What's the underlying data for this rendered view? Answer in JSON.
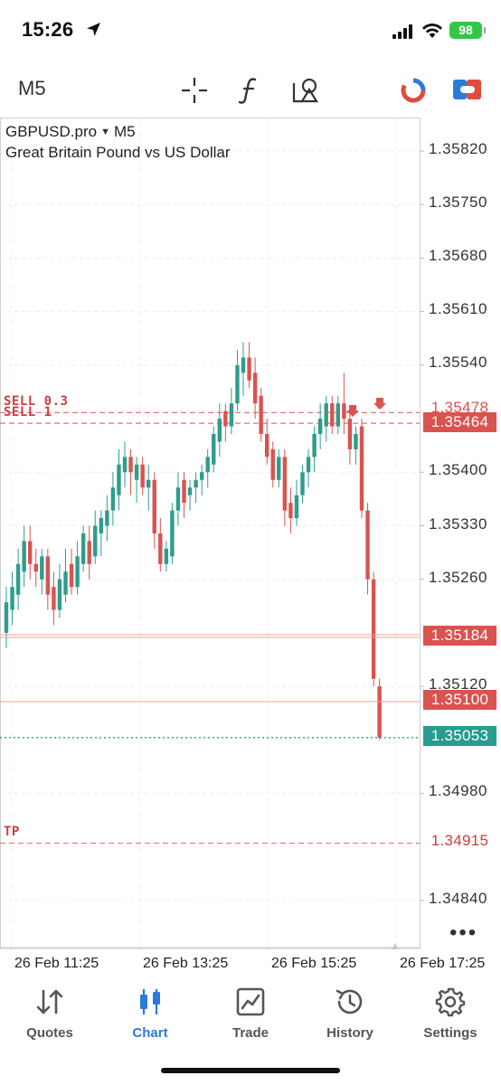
{
  "status_bar": {
    "time": "15:26",
    "battery": "98"
  },
  "toolbar": {
    "timeframe": "M5"
  },
  "chart": {
    "symbol": "GBPUSD.pro",
    "symbol_timeframe": "M5",
    "description": "Great Britain Pound vs US Dollar",
    "price_scale": [
      "1.35820",
      "1.35750",
      "1.35680",
      "1.35610",
      "1.35540",
      "1.35400",
      "1.35330",
      "1.35260",
      "1.35120",
      "1.34980",
      "1.34840"
    ],
    "levels": {
      "sell_1_label": "SELL 0.3",
      "sell_1_price": "1.35478",
      "sell_2_label": "SELL 1",
      "sell_2_price": "1.35464",
      "line_1_price": "1.35184",
      "line_2_price": "1.35100",
      "current_price": "1.35053",
      "tp_label": "TP",
      "tp_price": "1.34915"
    },
    "time_axis": [
      "26 Feb 11:25",
      "26 Feb 13:25",
      "26 Feb 15:25",
      "26 Feb 17:25"
    ],
    "colors": {
      "bull": "#2f9c8c",
      "bear": "#d9534f",
      "current": "#279c8f"
    }
  },
  "chart_data": {
    "type": "candlestick",
    "y_range": [
      1.348,
      1.3585
    ],
    "series": [
      {
        "c": "b",
        "o": 1.3519,
        "h": 1.3525,
        "l": 1.3517,
        "cl": 1.3523
      },
      {
        "c": "b",
        "o": 1.3522,
        "h": 1.3527,
        "l": 1.352,
        "cl": 1.3525
      },
      {
        "c": "b",
        "o": 1.3524,
        "h": 1.353,
        "l": 1.3522,
        "cl": 1.3528
      },
      {
        "c": "b",
        "o": 1.3527,
        "h": 1.3533,
        "l": 1.3525,
        "cl": 1.3531
      },
      {
        "c": "r",
        "o": 1.3531,
        "h": 1.3533,
        "l": 1.3526,
        "cl": 1.3528
      },
      {
        "c": "r",
        "o": 1.3528,
        "h": 1.353,
        "l": 1.3525,
        "cl": 1.3527
      },
      {
        "c": "b",
        "o": 1.3526,
        "h": 1.353,
        "l": 1.3524,
        "cl": 1.3529
      },
      {
        "c": "r",
        "o": 1.3529,
        "h": 1.353,
        "l": 1.3522,
        "cl": 1.3524
      },
      {
        "c": "r",
        "o": 1.3525,
        "h": 1.3527,
        "l": 1.352,
        "cl": 1.3522
      },
      {
        "c": "b",
        "o": 1.3522,
        "h": 1.3528,
        "l": 1.3521,
        "cl": 1.3526
      },
      {
        "c": "b",
        "o": 1.3524,
        "h": 1.353,
        "l": 1.3523,
        "cl": 1.3527
      },
      {
        "c": "r",
        "o": 1.3528,
        "h": 1.353,
        "l": 1.3524,
        "cl": 1.3525
      },
      {
        "c": "b",
        "o": 1.3525,
        "h": 1.3531,
        "l": 1.3524,
        "cl": 1.3529
      },
      {
        "c": "b",
        "o": 1.3528,
        "h": 1.3533,
        "l": 1.3527,
        "cl": 1.3532
      },
      {
        "c": "r",
        "o": 1.3531,
        "h": 1.3533,
        "l": 1.3526,
        "cl": 1.3528
      },
      {
        "c": "b",
        "o": 1.3529,
        "h": 1.3535,
        "l": 1.3528,
        "cl": 1.3533
      },
      {
        "c": "b",
        "o": 1.3532,
        "h": 1.3535,
        "l": 1.3529,
        "cl": 1.3534
      },
      {
        "c": "b",
        "o": 1.3533,
        "h": 1.3537,
        "l": 1.3531,
        "cl": 1.3535
      },
      {
        "c": "b",
        "o": 1.3535,
        "h": 1.354,
        "l": 1.3533,
        "cl": 1.3538
      },
      {
        "c": "b",
        "o": 1.3537,
        "h": 1.3543,
        "l": 1.3535,
        "cl": 1.3541
      },
      {
        "c": "b",
        "o": 1.354,
        "h": 1.3544,
        "l": 1.3538,
        "cl": 1.3542
      },
      {
        "c": "r",
        "o": 1.3542,
        "h": 1.3543,
        "l": 1.3537,
        "cl": 1.354
      },
      {
        "c": "b",
        "o": 1.3539,
        "h": 1.3542,
        "l": 1.3536,
        "cl": 1.3541
      },
      {
        "c": "r",
        "o": 1.3541,
        "h": 1.3542,
        "l": 1.3537,
        "cl": 1.3538
      },
      {
        "c": "b",
        "o": 1.3538,
        "h": 1.3541,
        "l": 1.3535,
        "cl": 1.3539
      },
      {
        "c": "r",
        "o": 1.3539,
        "h": 1.354,
        "l": 1.353,
        "cl": 1.3532
      },
      {
        "c": "r",
        "o": 1.3532,
        "h": 1.3534,
        "l": 1.3527,
        "cl": 1.3528
      },
      {
        "c": "b",
        "o": 1.3528,
        "h": 1.3531,
        "l": 1.3527,
        "cl": 1.353
      },
      {
        "c": "b",
        "o": 1.3529,
        "h": 1.3536,
        "l": 1.3528,
        "cl": 1.3535
      },
      {
        "c": "b",
        "o": 1.3535,
        "h": 1.354,
        "l": 1.3533,
        "cl": 1.3538
      },
      {
        "c": "r",
        "o": 1.3539,
        "h": 1.354,
        "l": 1.3534,
        "cl": 1.3536
      },
      {
        "c": "b",
        "o": 1.3537,
        "h": 1.3539,
        "l": 1.3535,
        "cl": 1.3538
      },
      {
        "c": "b",
        "o": 1.3538,
        "h": 1.354,
        "l": 1.3536,
        "cl": 1.3539
      },
      {
        "c": "b",
        "o": 1.3539,
        "h": 1.3541,
        "l": 1.3537,
        "cl": 1.354
      },
      {
        "c": "b",
        "o": 1.354,
        "h": 1.3543,
        "l": 1.3538,
        "cl": 1.3542
      },
      {
        "c": "b",
        "o": 1.3541,
        "h": 1.3546,
        "l": 1.354,
        "cl": 1.3545
      },
      {
        "c": "b",
        "o": 1.3544,
        "h": 1.3549,
        "l": 1.3542,
        "cl": 1.3547
      },
      {
        "c": "r",
        "o": 1.3548,
        "h": 1.3549,
        "l": 1.3544,
        "cl": 1.3546
      },
      {
        "c": "b",
        "o": 1.3546,
        "h": 1.3551,
        "l": 1.3545,
        "cl": 1.3549
      },
      {
        "c": "b",
        "o": 1.3549,
        "h": 1.3556,
        "l": 1.3548,
        "cl": 1.3554
      },
      {
        "c": "b",
        "o": 1.3553,
        "h": 1.3557,
        "l": 1.355,
        "cl": 1.3555
      },
      {
        "c": "r",
        "o": 1.3555,
        "h": 1.3557,
        "l": 1.3551,
        "cl": 1.3552
      },
      {
        "c": "r",
        "o": 1.3553,
        "h": 1.3555,
        "l": 1.3547,
        "cl": 1.3549
      },
      {
        "c": "r",
        "o": 1.355,
        "h": 1.3551,
        "l": 1.3544,
        "cl": 1.3545
      },
      {
        "c": "r",
        "o": 1.3545,
        "h": 1.3547,
        "l": 1.3541,
        "cl": 1.3542
      },
      {
        "c": "r",
        "o": 1.3543,
        "h": 1.3544,
        "l": 1.3538,
        "cl": 1.3539
      },
      {
        "c": "b",
        "o": 1.3539,
        "h": 1.3543,
        "l": 1.3538,
        "cl": 1.3542
      },
      {
        "c": "r",
        "o": 1.3542,
        "h": 1.3543,
        "l": 1.3533,
        "cl": 1.3535
      },
      {
        "c": "r",
        "o": 1.3536,
        "h": 1.3538,
        "l": 1.3532,
        "cl": 1.3534
      },
      {
        "c": "b",
        "o": 1.3534,
        "h": 1.3539,
        "l": 1.3533,
        "cl": 1.3537
      },
      {
        "c": "b",
        "o": 1.3537,
        "h": 1.3541,
        "l": 1.3536,
        "cl": 1.354
      },
      {
        "c": "b",
        "o": 1.354,
        "h": 1.3543,
        "l": 1.3538,
        "cl": 1.3542
      },
      {
        "c": "b",
        "o": 1.3542,
        "h": 1.3546,
        "l": 1.354,
        "cl": 1.3545
      },
      {
        "c": "b",
        "o": 1.3545,
        "h": 1.3549,
        "l": 1.3543,
        "cl": 1.3547
      },
      {
        "c": "b",
        "o": 1.3546,
        "h": 1.355,
        "l": 1.3544,
        "cl": 1.3549
      },
      {
        "c": "r",
        "o": 1.3549,
        "h": 1.355,
        "l": 1.3545,
        "cl": 1.3546
      },
      {
        "c": "b",
        "o": 1.3546,
        "h": 1.355,
        "l": 1.3545,
        "cl": 1.3549
      },
      {
        "c": "r",
        "o": 1.3549,
        "h": 1.3553,
        "l": 1.3545,
        "cl": 1.3547
      },
      {
        "c": "r",
        "o": 1.3547,
        "h": 1.3548,
        "l": 1.3541,
        "cl": 1.3543
      },
      {
        "c": "b",
        "o": 1.3543,
        "h": 1.3546,
        "l": 1.3541,
        "cl": 1.3545
      },
      {
        "c": "r",
        "o": 1.3546,
        "h": 1.3547,
        "l": 1.3534,
        "cl": 1.3535
      },
      {
        "c": "r",
        "o": 1.3535,
        "h": 1.3536,
        "l": 1.3524,
        "cl": 1.3526
      },
      {
        "c": "r",
        "o": 1.3526,
        "h": 1.3527,
        "l": 1.3512,
        "cl": 1.3513
      },
      {
        "c": "r",
        "o": 1.3512,
        "h": 1.3513,
        "l": 1.3505,
        "cl": 1.35053
      }
    ]
  },
  "tabs": [
    {
      "label": "Quotes",
      "icon": "sort-arrows-icon"
    },
    {
      "label": "Chart",
      "icon": "candlestick-icon"
    },
    {
      "label": "Trade",
      "icon": "trade-chart-icon"
    },
    {
      "label": "History",
      "icon": "history-clock-icon"
    },
    {
      "label": "Settings",
      "icon": "gear-icon"
    }
  ]
}
